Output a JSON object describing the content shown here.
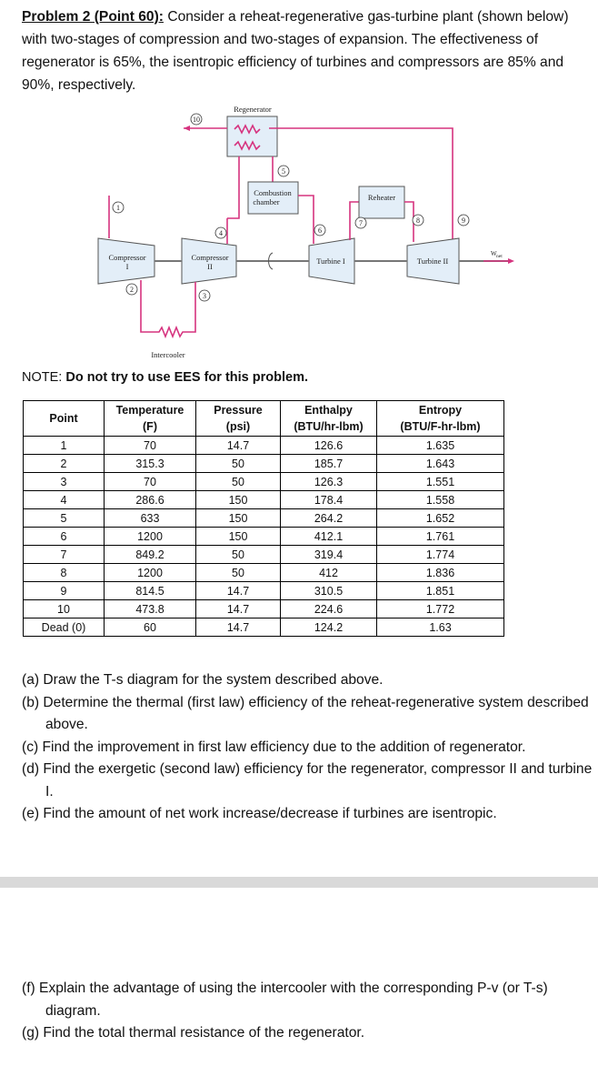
{
  "problem": {
    "heading": "Problem 2 (Point 60):",
    "text": "Consider a reheat-regenerative gas-turbine plant (shown below) with two-stages of compression and two-stages of expansion. The effectiveness of regenerator is 65%, the isentropic efficiency of turbines and compressors are 85% and 90%, respectively."
  },
  "diagram": {
    "regenerator": "Regenerator",
    "combustion_chamber": [
      "Combustion",
      "chamber"
    ],
    "reheater": "Reheater",
    "compressor_1": [
      "Compressor",
      "I"
    ],
    "compressor_2": [
      "Compressor",
      "II"
    ],
    "turbine_1": "Turbine I",
    "turbine_2": "Turbine II",
    "intercooler": "Intercooler",
    "work": "W",
    "work_sub": "net",
    "states": [
      "1",
      "2",
      "3",
      "4",
      "5",
      "6",
      "7",
      "8",
      "9",
      "10"
    ]
  },
  "note": {
    "label": "NOTE:",
    "text": "Do not try to use EES for this problem."
  },
  "table": {
    "headers": [
      [
        "Point"
      ],
      [
        "Temperature",
        "(F)"
      ],
      [
        "Pressure",
        "(psi)"
      ],
      [
        "Enthalpy",
        "(BTU/hr-lbm)"
      ],
      [
        "Entropy",
        "(BTU/F-hr-lbm)"
      ]
    ],
    "rows": [
      [
        "1",
        "70",
        "14.7",
        "126.6",
        "1.635"
      ],
      [
        "2",
        "315.3",
        "50",
        "185.7",
        "1.643"
      ],
      [
        "3",
        "70",
        "50",
        "126.3",
        "1.551"
      ],
      [
        "4",
        "286.6",
        "150",
        "178.4",
        "1.558"
      ],
      [
        "5",
        "633",
        "150",
        "264.2",
        "1.652"
      ],
      [
        "6",
        "1200",
        "150",
        "412.1",
        "1.761"
      ],
      [
        "7",
        "849.2",
        "50",
        "319.4",
        "1.774"
      ],
      [
        "8",
        "1200",
        "50",
        "412",
        "1.836"
      ],
      [
        "9",
        "814.5",
        "14.7",
        "310.5",
        "1.851"
      ],
      [
        "10",
        "473.8",
        "14.7",
        "224.6",
        "1.772"
      ],
      [
        "Dead (0)",
        "60",
        "14.7",
        "124.2",
        "1.63"
      ]
    ]
  },
  "questions": [
    "(a) Draw the T-s diagram for the system described above.",
    "(b) Determine the thermal (first law) efficiency of the reheat-regenerative system described above.",
    "(c) Find the improvement in first law efficiency due to the addition of regenerator.",
    "(d) Find the exergetic (second law) efficiency for the regenerator, compressor II and turbine I.",
    "(e) Find the amount of net work increase/decrease if turbines are isentropic."
  ],
  "questions_2": [
    "(f) Explain the advantage of using the intercooler with the corresponding P-v (or T-s) diagram.",
    "(g) Find the total thermal resistance of the regenerator."
  ]
}
